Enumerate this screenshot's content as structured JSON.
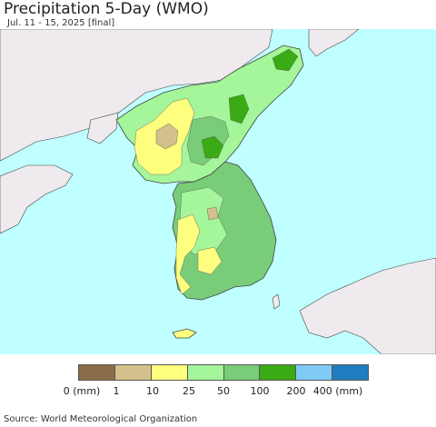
{
  "header": {
    "title": "Precipitation 5-Day (WMO)",
    "subtitle": "Jul. 11 - 15, 2025 [final]"
  },
  "legend": {
    "colors": [
      "#8b6d4a",
      "#d4c08a",
      "#ffff7f",
      "#a5f59a",
      "#79cd79",
      "#3aab14",
      "#7fcbf5",
      "#1f7dc0"
    ],
    "labels": [
      "0 (mm)",
      "1",
      "10",
      "25",
      "50",
      "100",
      "200",
      "400 (mm)"
    ]
  },
  "map": {
    "sea_color": "#bfffff",
    "land_outside_color": "#eeeaee",
    "border_color": "#444444"
  },
  "footer": {
    "source": "Source: World Meteorological Organization"
  }
}
